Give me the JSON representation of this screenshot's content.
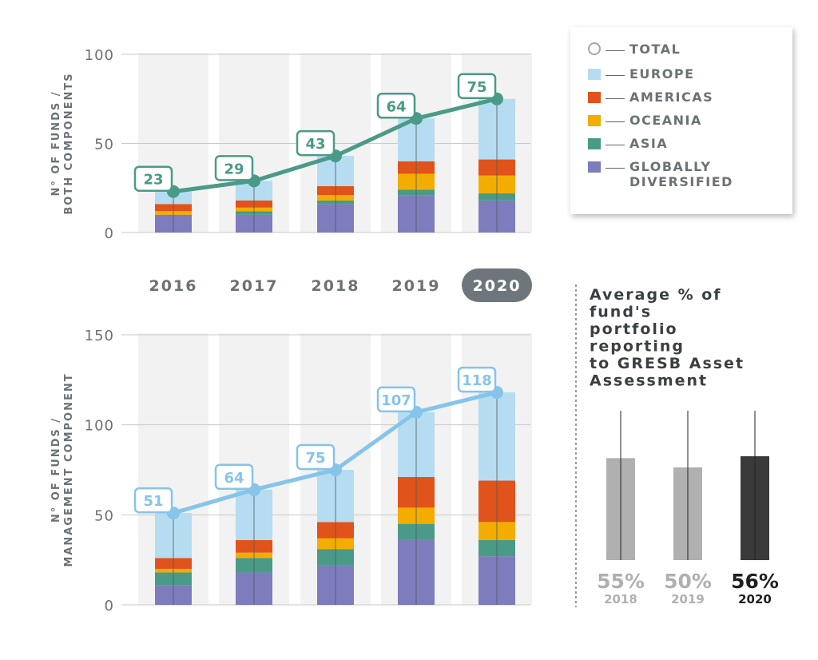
{
  "colors": {
    "europe": "#b5dcf0",
    "americas": "#e0531a",
    "oceania": "#f2ad00",
    "asia": "#4a9a88",
    "globally": "#7d7cbc",
    "top_line": "#4a9a88",
    "bottom_line": "#86c4ea",
    "axis_text": "#6b7175",
    "band": "#f2f2f2",
    "highlight_year_bg": "#6e767b",
    "grey_bar": "#b0b0b0",
    "dark_bar": "#3a3a3a"
  },
  "years": {
    "labels": [
      "2016",
      "2017",
      "2018",
      "2019",
      "2020"
    ],
    "highlighted": "2020"
  },
  "legend": {
    "total": "TOTAL",
    "europe": "EUROPE",
    "americas": "AMERICAS",
    "oceania": "OCEANIA",
    "asia": "ASIA",
    "globally": "GLOBALLY\nDIVERSIFIED"
  },
  "chart_data": [
    {
      "type": "bar",
      "stacked": true,
      "ylabel": "N° OF FUNDS / BOTH COMPONENTS",
      "ylim": [
        0,
        100
      ],
      "yticks": [
        0,
        50,
        100
      ],
      "categories": [
        "2016",
        "2017",
        "2018",
        "2019",
        "2020"
      ],
      "series": [
        {
          "name": "GLOBALLY DIVERSIFIED",
          "values": [
            10,
            10,
            16,
            21,
            18
          ]
        },
        {
          "name": "ASIA",
          "values": [
            0,
            2,
            2,
            3,
            4
          ]
        },
        {
          "name": "OCEANIA",
          "values": [
            2,
            2,
            3,
            9,
            10
          ]
        },
        {
          "name": "AMERICAS",
          "values": [
            4,
            4,
            5,
            7,
            9
          ]
        },
        {
          "name": "EUROPE",
          "values": [
            7,
            11,
            17,
            24,
            34
          ]
        }
      ],
      "total": {
        "name": "TOTAL",
        "values": [
          23,
          29,
          43,
          64,
          75
        ]
      },
      "grid": true
    },
    {
      "type": "bar",
      "stacked": true,
      "ylabel": "N° OF FUNDS / MANAGEMENT COMPONENT",
      "ylim": [
        0,
        150
      ],
      "yticks": [
        0,
        50,
        100,
        150
      ],
      "categories": [
        "2016",
        "2017",
        "2018",
        "2019",
        "2020"
      ],
      "series": [
        {
          "name": "GLOBALLY DIVERSIFIED",
          "values": [
            11,
            18,
            22,
            36,
            27
          ]
        },
        {
          "name": "ASIA",
          "values": [
            7,
            8,
            9,
            9,
            9
          ]
        },
        {
          "name": "OCEANIA",
          "values": [
            2,
            3,
            6,
            9,
            10
          ]
        },
        {
          "name": "AMERICAS",
          "values": [
            6,
            7,
            9,
            17,
            23
          ]
        },
        {
          "name": "EUROPE",
          "values": [
            25,
            28,
            29,
            36,
            49
          ]
        }
      ],
      "total": {
        "name": "TOTAL",
        "values": [
          51,
          64,
          75,
          107,
          118
        ]
      },
      "grid": true
    },
    {
      "type": "bar",
      "title": "Average % of fund's portfolio reporting to GRESB Asset Assessment",
      "categories": [
        "2018",
        "2019",
        "2020"
      ],
      "values": [
        55,
        50,
        56
      ],
      "value_labels": [
        "55%",
        "50%",
        "56%"
      ],
      "highlighted": "2020"
    }
  ]
}
